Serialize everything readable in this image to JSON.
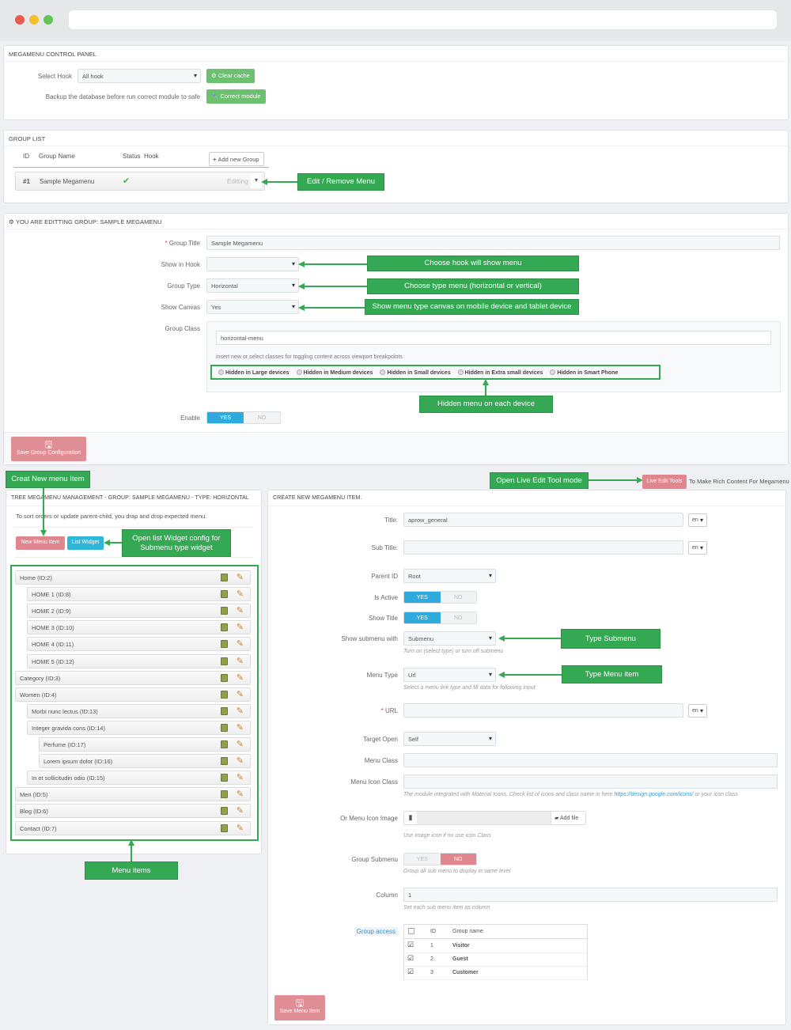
{
  "colors": {
    "green": "#6cc070",
    "callout": "#34a853",
    "blue": "#2eaadc",
    "pink": "#e0868e"
  },
  "control_panel": {
    "title": "MEGAMENU CONTROL PANEL",
    "select_hook_label": "Select Hook",
    "select_hook_value": "All hook",
    "clear_cache": "Clear cache",
    "backup_text": "Backup the database before run correct module to safe",
    "correct_module": "Correct module"
  },
  "group_list": {
    "title": "GROUP LIST",
    "headers": [
      "ID",
      "Group Name",
      "Status",
      "Hook"
    ],
    "add_group": "Add new Group",
    "row": {
      "id": "#1",
      "name": "Sample Megamenu",
      "status": "enabled",
      "action": "Editting"
    }
  },
  "edit_group": {
    "title": "YOU ARE EDITTING GROUP: SAMPLE MEGAMENU",
    "group_title_label": "Group Title",
    "group_title_value": "Sample Megamenu",
    "show_in_hook_label": "Show in Hook",
    "show_in_hook_value": "",
    "group_type_label": "Group Type",
    "group_type_value": "Horizontal",
    "show_canvas_label": "Show Canvas",
    "show_canvas_value": "Yes",
    "group_class_label": "Group Class",
    "group_class_value": "horizontal-menu",
    "group_class_help": "insert new or select classes for toggling content across viewport breakpoints",
    "device_options": [
      "Hidden in Large devices",
      "Hidden in Medium devices",
      "Hidden in Small devices",
      "Hidden in Extra small devices",
      "Hidden in Smart Phone"
    ],
    "enable_label": "Enable",
    "yes": "YES",
    "no": "NO",
    "enable_value": "YES",
    "save": "Save Group Configuration"
  },
  "callouts": {
    "edit_remove": "Edit / Remove Menu",
    "choose_hook": "Choose hook will show menu",
    "choose_type": "Choose type menu (horizontal or vertical)",
    "show_canvas": "Show menu type canvas on mobile device and tablet device",
    "hidden_device": "Hidden menu on each device",
    "create_item": "Creat New menu Item",
    "live_edit": "Open Live Edit Tool mode",
    "list_widget": "Open list Widget config for Submenu type widget",
    "menu_items": "Menu items",
    "type_submenu": "Type Submenu",
    "type_menu_item": "Type Menu item"
  },
  "live_edit": {
    "button": "Live Edit Tools",
    "text": "To Make Rich Content For Megamenu"
  },
  "tree": {
    "title": "TREE MEGAMENU MANAGEMENT - GROUP: SAMPLE MEGAMENU - TYPE: HORIZONTAL",
    "help": "To sort orders or update parent-child, you drap and drop expected menu.",
    "new_item": "New Menu Item",
    "list_widget": "List Widget",
    "items": [
      {
        "label": "Home (ID:2)",
        "level": 0
      },
      {
        "label": "HOME 1 (ID:8)",
        "level": 1
      },
      {
        "label": "HOME 2 (ID:9)",
        "level": 1
      },
      {
        "label": "HOME 3 (ID:10)",
        "level": 1
      },
      {
        "label": "HOME 4 (ID:11)",
        "level": 1
      },
      {
        "label": "HOME 5 (ID:12)",
        "level": 1
      },
      {
        "label": "Category (ID:3)",
        "level": 0
      },
      {
        "label": "Women (ID:4)",
        "level": 0
      },
      {
        "label": "Morbi nunc lectus (ID:13)",
        "level": 1
      },
      {
        "label": "Integer gravida cons (ID:14)",
        "level": 1
      },
      {
        "label": "Perfume (ID:17)",
        "level": 2
      },
      {
        "label": "Lorem ipsum dolor (ID:16)",
        "level": 2
      },
      {
        "label": "In et sollicitudin odio (ID:15)",
        "level": 1
      },
      {
        "label": "Men (ID:5)",
        "level": 0
      },
      {
        "label": "Blog (ID:6)",
        "level": 0
      },
      {
        "label": "Contact (ID:7)",
        "level": 0
      }
    ]
  },
  "item_form": {
    "title": "CREATE NEW MEGAMENU ITEM.",
    "lang": "en",
    "title_label": "Title:",
    "title_value": "aprow_general",
    "subtitle_label": "Sub Title:",
    "parent_label": "Parent ID",
    "parent_value": "Root",
    "is_active_label": "Is Active",
    "show_title_label": "Show Title",
    "yes": "YES",
    "no": "NO",
    "submenu_label": "Show submenu with",
    "submenu_value": "Submenu",
    "submenu_help": "Turn on (select type) or turn off submenu",
    "menu_type_label": "Menu Type",
    "menu_type_value": "Url",
    "menu_type_help": "Select a menu link type and fill data for following input",
    "url_label": "URL",
    "target_label": "Target Open",
    "target_value": "Self",
    "menu_class_label": "Menu Class",
    "icon_class_label": "Menu Icon Class",
    "icon_help": "The module integrated with Material Icons. Check list of icons and class name in here",
    "icon_link": "https://design.google.com/icons/",
    "icon_help2": "or your icon class",
    "icon_image_label": "Or Menu Icon Image",
    "add_file": "Add file",
    "icon_image_help": "Use image icon if no use icon Class",
    "group_submenu_label": "Group Submenu",
    "group_submenu_help": "Group all sub menu to display in same level",
    "column_label": "Column",
    "column_value": "1",
    "column_help": "Set each sub menu item as column",
    "group_access_label": "Group access",
    "access_headers": [
      "ID",
      "Group name"
    ],
    "access_rows": [
      {
        "id": "1",
        "name": "Visitor",
        "checked": true
      },
      {
        "id": "2",
        "name": "Guest",
        "checked": true
      },
      {
        "id": "3",
        "name": "Customer",
        "checked": true
      }
    ],
    "save": "Save Menu Item"
  }
}
